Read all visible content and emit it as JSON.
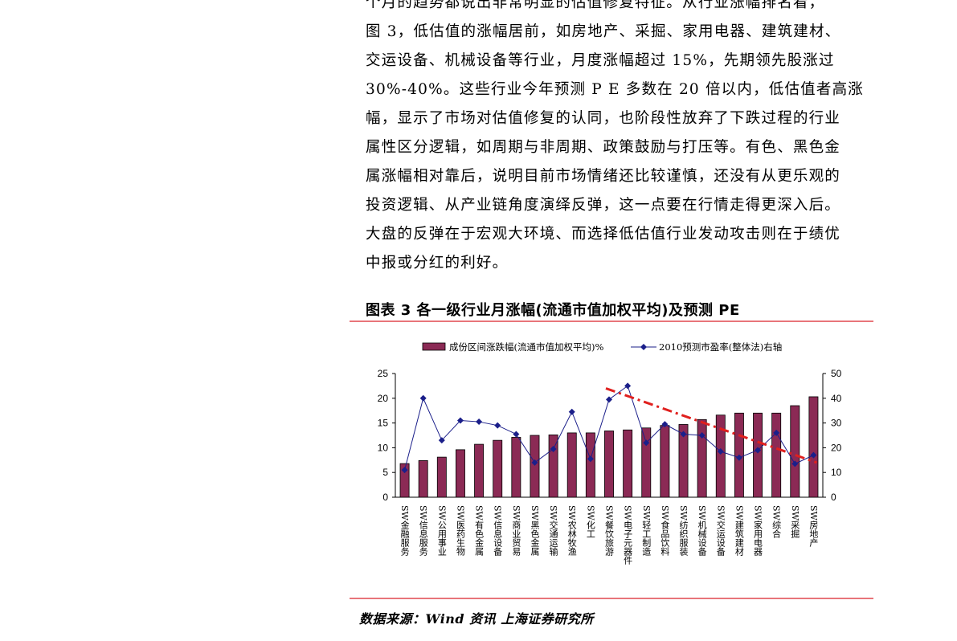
{
  "paragraph": {
    "lines": [
      "个月的趋势都说出非常明显的估值修复特征。从行业涨幅排名看，",
      "图 3，低估值的涨幅居前，如房地产、采掘、家用电器、建筑建材、",
      "交运设备、机械设备等行业，月度涨幅超过 15%，先期领先股涨过",
      "30%-40%。这些行业今年预测 P E 多数在 20 倍以内，低估值者高涨",
      "幅，显示了市场对估值修复的认同，也阶段性放弃了下跌过程的行业",
      "属性区分逻辑，如周期与非周期、政策鼓励与打压等。有色、黑色金",
      "属涨幅相对靠后，说明目前市场情绪还比较谨慎，还没有从更乐观的",
      "投资逻辑、从产业链角度演绎反弹，这一点要在行情走得更深入后。",
      "大盘的反弹在于宏观大环境、而选择低估值行业发动攻击则在于绩优",
      "中报或分红的利好。"
    ]
  },
  "figure": {
    "title": "图表 3    各一级行业月涨幅(流通市值加权平均)及预测 PE",
    "source": "数据来源：Wind 资讯  上海证券研究所"
  },
  "colors": {
    "bar": "#8b2a55",
    "line": "#1b1f8a",
    "trend": "#e0201e",
    "rule": "#e8757a"
  },
  "chart_data": {
    "type": "bar",
    "categories": [
      "SW金融服务",
      "SW信息服务",
      "SW公用事业",
      "SW医药生物",
      "SW有色金属",
      "SW信息设备",
      "SW商业贸易",
      "SW黑色金属",
      "SW交通运输",
      "SW农林牧渔",
      "SW化工",
      "SW餐饮旅游",
      "SW电子元器件",
      "SW轻工制造",
      "SW食品饮料",
      "SW纺织服装",
      "SW机械设备",
      "SW交运设备",
      "SW建筑建材",
      "SW家用电器",
      "SW综合",
      "SW采掘",
      "SW房地产"
    ],
    "series": [
      {
        "name": "成份区间涨跌幅(流通市值加权平均)%",
        "kind": "bar",
        "axis": "left",
        "values": [
          6.8,
          7.4,
          8.1,
          9.6,
          10.7,
          11.5,
          12.1,
          12.5,
          12.6,
          13.0,
          13.0,
          13.4,
          13.6,
          14.0,
          14.5,
          14.7,
          15.7,
          16.6,
          17.0,
          17.0,
          17.0,
          18.5,
          20.3
        ]
      },
      {
        "name": "2010预测市盈率(整体法)右轴",
        "kind": "line",
        "axis": "right",
        "values": [
          11,
          40,
          23,
          31,
          30.5,
          29,
          25.5,
          14,
          19.5,
          34.5,
          15.5,
          39.5,
          45,
          22,
          29.5,
          25.5,
          25,
          18.5,
          16,
          19,
          26,
          13.5,
          17
        ]
      }
    ],
    "trend_line": {
      "from": [
        "SW餐饮旅游",
        44
      ],
      "to": [
        "SW房地产",
        14
      ]
    },
    "ylim": [
      0,
      25
    ],
    "y_ticks": [
      0,
      5,
      10,
      15,
      20,
      25
    ],
    "y2lim": [
      0,
      50
    ],
    "y2_ticks": [
      0,
      10,
      20,
      30,
      40,
      50
    ],
    "legend_position": "top"
  }
}
